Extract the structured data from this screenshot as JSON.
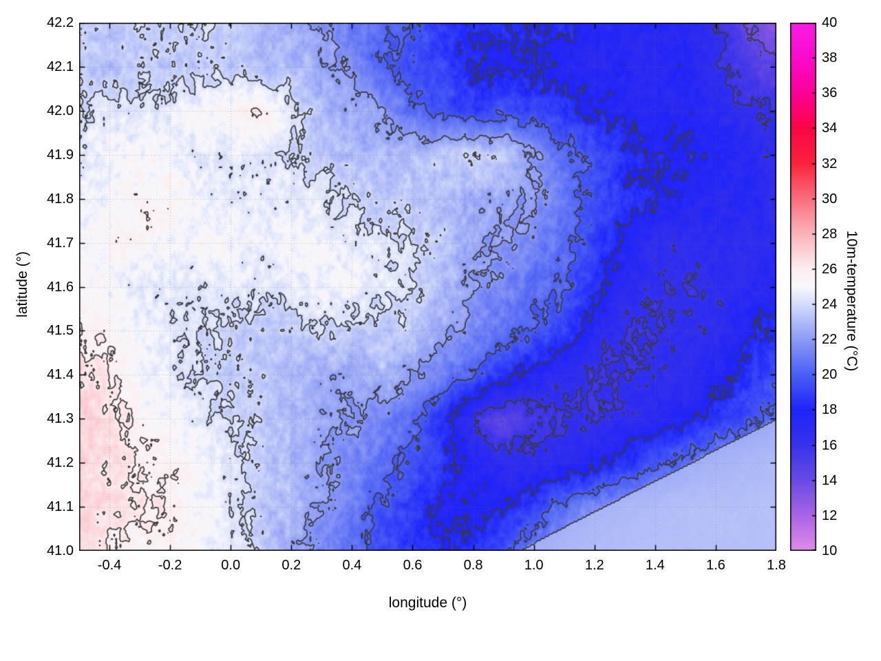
{
  "figure": {
    "background": "#ffffff",
    "border_color": "#000000",
    "grid_color": "#8a8a8a"
  },
  "chart_data": {
    "type": "heatmap",
    "title": "",
    "xlabel": "longitude (°)",
    "ylabel": "latitude (°)",
    "colorbar_label": "10m-temperature (°C)",
    "xlim": [
      -0.5,
      1.8
    ],
    "ylim": [
      41.0,
      42.2
    ],
    "clim": [
      10,
      40
    ],
    "grid": true,
    "x_tick_values": [
      -0.4,
      -0.2,
      0.0,
      0.2,
      0.4,
      0.6,
      0.8,
      1.0,
      1.2,
      1.4,
      1.6,
      1.8
    ],
    "x_tick_labels": [
      "-0.4",
      "-0.2",
      "0.0",
      "0.2",
      "0.4",
      "0.6",
      "0.8",
      "1.0",
      "1.2",
      "1.4",
      "1.6",
      "1.8"
    ],
    "y_tick_values": [
      41.0,
      41.1,
      41.2,
      41.3,
      41.4,
      41.5,
      41.6,
      41.7,
      41.8,
      41.9,
      42.0,
      42.1,
      42.2
    ],
    "y_tick_labels": [
      "41.0",
      "41.1",
      "41.2",
      "41.3",
      "41.4",
      "41.5",
      "41.6",
      "41.7",
      "41.8",
      "41.9",
      "42.0",
      "42.1",
      "42.2"
    ],
    "cb_tick_values": [
      10,
      12,
      14,
      16,
      18,
      20,
      22,
      24,
      26,
      28,
      30,
      32,
      34,
      36,
      38,
      40
    ],
    "cb_tick_labels": [
      "10",
      "12",
      "14",
      "16",
      "18",
      "20",
      "22",
      "24",
      "26",
      "28",
      "30",
      "32",
      "34",
      "36",
      "38",
      "40"
    ],
    "contour_levels": [
      14,
      16,
      18,
      20,
      22,
      24,
      26
    ],
    "contour_color": "#3a3a3a",
    "colormap_stops": [
      {
        "v": 10,
        "rgb": [
          225,
          140,
          232
        ]
      },
      {
        "v": 12,
        "rgb": [
          170,
          100,
          230
        ]
      },
      {
        "v": 14,
        "rgb": [
          105,
          75,
          228
        ]
      },
      {
        "v": 16,
        "rgb": [
          55,
          50,
          235
        ]
      },
      {
        "v": 18,
        "rgb": [
          30,
          35,
          250
        ]
      },
      {
        "v": 20,
        "rgb": [
          75,
          95,
          245
        ]
      },
      {
        "v": 22,
        "rgb": [
          140,
          155,
          245
        ]
      },
      {
        "v": 24,
        "rgb": [
          212,
          220,
          250
        ]
      },
      {
        "v": 25,
        "rgb": [
          248,
          248,
          252
        ]
      },
      {
        "v": 26,
        "rgb": [
          252,
          238,
          240
        ]
      },
      {
        "v": 28,
        "rgb": [
          250,
          180,
          188
        ]
      },
      {
        "v": 30,
        "rgb": [
          250,
          110,
          125
        ]
      },
      {
        "v": 32,
        "rgb": [
          250,
          35,
          60
        ]
      },
      {
        "v": 34,
        "rgb": [
          252,
          5,
          70
        ]
      },
      {
        "v": 36,
        "rgb": [
          252,
          0,
          150
        ]
      },
      {
        "v": 38,
        "rgb": [
          250,
          10,
          205
        ]
      },
      {
        "v": 40,
        "rgb": [
          248,
          30,
          225
        ]
      }
    ],
    "lon": [
      -0.5,
      -0.4,
      -0.3,
      -0.2,
      -0.1,
      0.0,
      0.1,
      0.2,
      0.3,
      0.4,
      0.5,
      0.6,
      0.7,
      0.8,
      0.9,
      1.0,
      1.1,
      1.2,
      1.3,
      1.4,
      1.5,
      1.6,
      1.7,
      1.8
    ],
    "lat_rows": [
      42.2,
      42.1,
      42.0,
      41.9,
      41.8,
      41.7,
      41.6,
      41.5,
      41.4,
      41.3,
      41.2,
      41.1,
      41.0
    ],
    "values": [
      [
        23.5,
        23.5,
        24,
        23.5,
        24,
        23.5,
        23,
        22.5,
        22,
        21,
        20.5,
        20,
        18.5,
        18,
        18.5,
        18,
        18.5,
        17.5,
        17,
        17.5,
        17,
        16.5,
        14,
        13
      ],
      [
        23.5,
        23,
        23.5,
        23.5,
        23.5,
        23.5,
        23,
        23,
        22.5,
        21.5,
        20,
        19.5,
        19,
        18,
        17.5,
        18,
        17.5,
        17,
        17.5,
        17,
        17.5,
        16.5,
        15,
        14.5
      ],
      [
        24,
        24.5,
        24.5,
        24.5,
        25,
        25.5,
        26,
        24.5,
        23,
        22.5,
        22,
        20.5,
        19.5,
        19,
        19.5,
        19,
        18.5,
        18,
        17.5,
        17,
        17.5,
        17,
        16.5,
        16
      ],
      [
        24.5,
        25,
        25,
        25,
        24.5,
        24.5,
        24.5,
        24,
        23.5,
        23,
        23,
        23,
        23.5,
        24,
        23.5,
        22,
        20.5,
        19.5,
        18.5,
        18,
        18,
        17.5,
        17,
        16.5
      ],
      [
        25,
        25,
        25.5,
        25.5,
        25,
        24.5,
        24.5,
        24.5,
        24.5,
        24,
        23.5,
        23.5,
        23,
        22.5,
        22.5,
        22,
        21,
        19.5,
        18.5,
        18,
        17.5,
        17,
        17.5,
        16.5
      ],
      [
        25,
        25.5,
        25.5,
        25,
        25,
        25,
        24.5,
        25,
        25,
        24.5,
        24.5,
        24,
        23.5,
        22.5,
        22,
        21.5,
        20.5,
        19,
        17.5,
        16.5,
        16.5,
        17,
        16.5,
        17
      ],
      [
        25.5,
        25,
        24.5,
        24.5,
        24.5,
        24.5,
        24.5,
        24.5,
        25,
        25,
        24.5,
        24,
        23,
        22,
        21.5,
        20.5,
        20,
        18.5,
        17,
        16.5,
        16,
        16.5,
        17,
        17.5
      ],
      [
        26,
        25.5,
        25,
        24.5,
        24,
        24,
        23.5,
        23.5,
        24,
        23.5,
        23.5,
        23.5,
        22.5,
        21.5,
        20.5,
        20,
        19,
        17,
        16,
        16,
        16.5,
        16.5,
        17.5,
        18.5
      ],
      [
        26.5,
        26,
        25,
        24.5,
        24,
        23.5,
        23.5,
        23,
        22.5,
        22.5,
        23,
        22,
        21,
        20,
        18.5,
        17.5,
        16.5,
        16,
        16,
        16.5,
        16.5,
        17.5,
        18.5,
        19.5
      ],
      [
        27,
        26.5,
        25.5,
        25,
        24.5,
        24,
        23.5,
        23,
        22.5,
        22,
        21.5,
        20.5,
        18.5,
        16,
        14.5,
        15.5,
        16,
        16,
        16.5,
        17,
        17.5,
        18.5,
        19.5,
        20.5
      ],
      [
        27,
        26.5,
        26,
        25.5,
        25,
        24.5,
        23.5,
        23,
        22,
        21.5,
        20.5,
        19.5,
        18.5,
        17.5,
        16.5,
        16.5,
        17,
        17.5,
        18.5,
        19.5,
        20.5,
        21.5,
        22,
        22.5
      ],
      [
        27,
        26.5,
        26,
        26,
        25,
        24.5,
        23.5,
        23,
        22,
        21,
        19.5,
        19,
        17.5,
        17.5,
        18,
        19,
        20.5,
        21.5,
        22,
        22.5,
        23,
        23,
        23,
        23
      ],
      [
        26.5,
        26,
        25.5,
        25.5,
        25,
        24.5,
        23.5,
        22.5,
        21.5,
        20.5,
        19.5,
        18.5,
        18,
        18.5,
        19.5,
        21,
        22,
        22.5,
        23,
        23,
        23,
        23,
        23,
        23
      ]
    ],
    "sea": {
      "note_value": 23.2,
      "coast_from_lon": 0.95,
      "coast_slope": 0.353
    }
  }
}
